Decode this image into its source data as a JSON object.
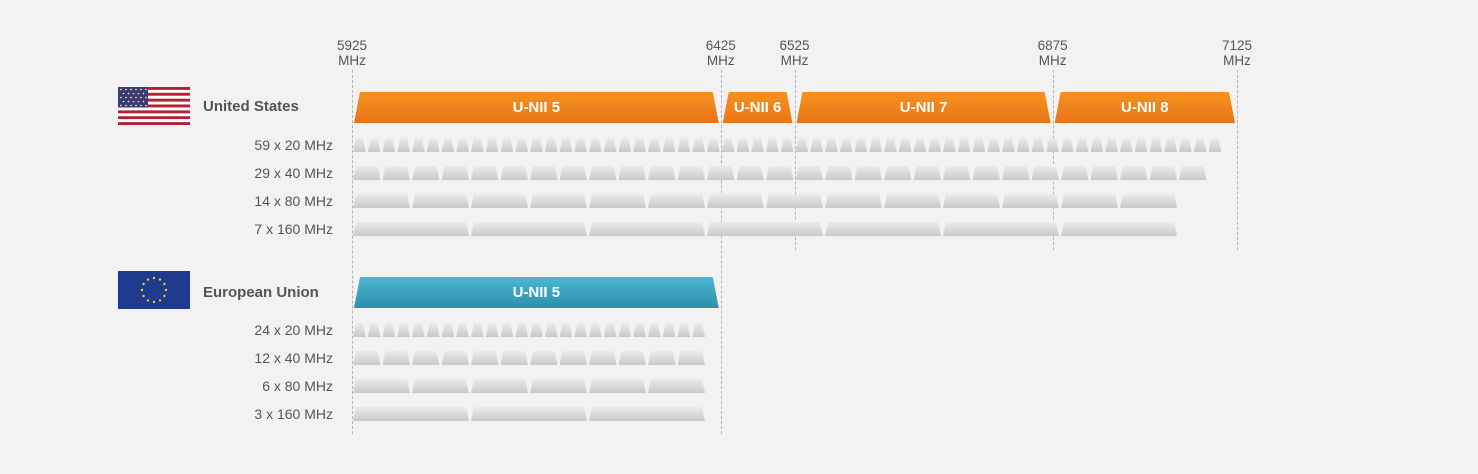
{
  "frequencies": [
    {
      "value": "5925",
      "unit": "MHz"
    },
    {
      "value": "6425",
      "unit": "MHz"
    },
    {
      "value": "6525",
      "unit": "MHz"
    },
    {
      "value": "6875",
      "unit": "MHz"
    },
    {
      "value": "7125",
      "unit": "MHz"
    }
  ],
  "regions": [
    {
      "name": "United States",
      "flag_icon": "us-flag-icon",
      "band_color": "#f08519",
      "bands": [
        {
          "label": "U-NII 5",
          "from": 5925,
          "to": 6425
        },
        {
          "label": "U-NII 6",
          "from": 6425,
          "to": 6525
        },
        {
          "label": "U-NII 7",
          "from": 6525,
          "to": 6875
        },
        {
          "label": "U-NII 8",
          "from": 6875,
          "to": 7125
        }
      ],
      "channel_rows": [
        {
          "label": "59 x 20 MHz",
          "count": 59,
          "width_mhz": 20
        },
        {
          "label": "29 x 40 MHz",
          "count": 29,
          "width_mhz": 40
        },
        {
          "label": "14 x 80 MHz",
          "count": 14,
          "width_mhz": 80
        },
        {
          "label": "7 x 160 MHz",
          "count": 7,
          "width_mhz": 160
        }
      ]
    },
    {
      "name": "European Union",
      "flag_icon": "eu-flag-icon",
      "band_color": "#3da3bf",
      "bands": [
        {
          "label": "U-NII 5",
          "from": 5925,
          "to": 6425
        }
      ],
      "channel_rows": [
        {
          "label": "24 x 20 MHz",
          "count": 24,
          "width_mhz": 20
        },
        {
          "label": "12 x 40 MHz",
          "count": 12,
          "width_mhz": 40
        },
        {
          "label": "6 x 80 MHz",
          "count": 6,
          "width_mhz": 80
        },
        {
          "label": "3 x 160 MHz",
          "count": 3,
          "width_mhz": 160
        }
      ]
    }
  ]
}
